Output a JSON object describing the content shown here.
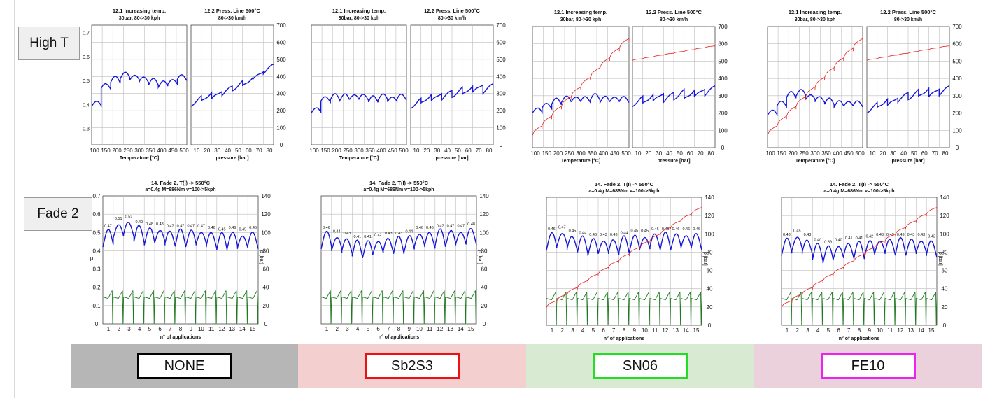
{
  "row_labels": {
    "high_t": "High T",
    "fade2": "Fade 2"
  },
  "materials": [
    {
      "name": "NONE",
      "box_color": "#000000",
      "bg_color": "#b6b6b6"
    },
    {
      "name": "Sb2S3",
      "box_color": "#ee1111",
      "bg_color": "#f3cfcf"
    },
    {
      "name": "SN06",
      "box_color": "#22dd22",
      "bg_color": "#d9ead3"
    },
    {
      "name": "FE10",
      "box_color": "#ee22ee",
      "bg_color": "#ead1dc"
    }
  ],
  "colors": {
    "mu": "#1515d8",
    "temperature": "#e82020",
    "pressure": "#1f7a1f"
  },
  "chart_data": [
    {
      "type": "line",
      "title": "12.1 Increasing temp.",
      "subtitle": "30bar, 80->30 kph",
      "xlabel": "Temperature [°C]",
      "x_ticks": [
        "100",
        "150",
        "200",
        "250",
        "300",
        "350",
        "400",
        "450",
        "500"
      ],
      "y_ticks_left": [
        "0.3",
        "0.4",
        "0.5",
        "0.6",
        "0.7"
      ],
      "applies_to": [
        "NONE",
        "Sb2S3",
        "SN06",
        "FE10"
      ],
      "series": [
        {
          "name": "μ",
          "material": "NONE",
          "values": [
            0.39,
            0.47,
            0.5,
            0.52,
            0.51,
            0.5,
            0.49,
            0.48,
            0.49,
            0.51
          ]
        },
        {
          "name": "μ",
          "material": "Sb2S3",
          "values": [
            0.36,
            0.41,
            0.42,
            0.42,
            0.42,
            0.42,
            0.41,
            0.42,
            0.41,
            0.42
          ]
        },
        {
          "name": "μ",
          "material": "SN06",
          "values": [
            0.37,
            0.39,
            0.41,
            0.42,
            0.42,
            0.42,
            0.43,
            0.42,
            0.42,
            0.42
          ]
        },
        {
          "name": "μ",
          "material": "FE10",
          "values": [
            0.36,
            0.4,
            0.44,
            0.45,
            0.43,
            0.42,
            0.41,
            0.4,
            0.4,
            0.4
          ]
        }
      ]
    },
    {
      "type": "line",
      "title": "12.2 Press. Line 500°C",
      "subtitle": "80->30 km/h",
      "xlabel": "pressure [bar]",
      "x_ticks": [
        "10",
        "20",
        "30",
        "40",
        "50",
        "60",
        "70",
        "80"
      ],
      "y_ticks_right": [
        "0",
        "100",
        "200",
        "300",
        "400",
        "500",
        "600",
        "700"
      ],
      "applies_to": [
        "NONE",
        "Sb2S3",
        "SN06",
        "FE10"
      ],
      "series": [
        {
          "name": "μ",
          "material": "NONE",
          "values": [
            0.4,
            0.42,
            0.43,
            0.45,
            0.47,
            0.49,
            0.52,
            0.55
          ]
        },
        {
          "name": "μ",
          "material": "Sb2S3",
          "values": [
            0.39,
            0.41,
            0.42,
            0.43,
            0.44,
            0.45,
            0.46,
            0.46
          ]
        },
        {
          "name": "μ",
          "material": "SN06",
          "values": [
            0.41,
            0.42,
            0.43,
            0.43,
            0.44,
            0.44,
            0.45,
            0.46
          ]
        },
        {
          "name": "μ",
          "material": "FE10",
          "values": [
            0.38,
            0.4,
            0.41,
            0.43,
            0.44,
            0.45,
            0.45,
            0.46
          ]
        }
      ]
    },
    {
      "type": "line",
      "title": "14. Fade 2, T(I) -> 550°C",
      "subtitle": "a=0.4g M=686Nm v=100->5kph",
      "xlabel": "n° of applications",
      "ylabel_left": "μ",
      "ylabel_right": "p [bar]",
      "x_ticks": [
        "1",
        "2",
        "3",
        "4",
        "5",
        "6",
        "7",
        "8",
        "9",
        "10",
        "11",
        "12",
        "13",
        "14",
        "15"
      ],
      "y_ticks_left": [
        "0",
        "0.1",
        "0.2",
        "0.3",
        "0.4",
        "0.5",
        "0.6",
        "0.7"
      ],
      "y_ticks_right": [
        "0",
        "20",
        "40",
        "60",
        "80",
        "100",
        "120",
        "140"
      ],
      "applies_to": [
        "NONE",
        "Sb2S3",
        "SN06",
        "FE10"
      ],
      "series": [
        {
          "name": "μ",
          "material": "NONE",
          "values": [
            0.47,
            0.51,
            0.52,
            0.49,
            0.48,
            0.48,
            0.47,
            0.47,
            0.47,
            0.47,
            0.46,
            0.45,
            0.46,
            0.45,
            0.46
          ]
        },
        {
          "name": "μ",
          "material": "Sb2S3",
          "values": [
            0.46,
            0.44,
            0.43,
            0.41,
            0.41,
            0.42,
            0.43,
            0.43,
            0.44,
            0.46,
            0.46,
            0.47,
            0.47,
            0.47,
            0.48
          ]
        },
        {
          "name": "μ",
          "material": "SN06",
          "values": [
            0.46,
            0.47,
            0.45,
            0.44,
            0.43,
            0.43,
            0.43,
            0.44,
            0.45,
            0.45,
            0.46,
            0.46,
            0.46,
            0.46,
            0.46
          ]
        },
        {
          "name": "μ",
          "material": "FE10",
          "values": [
            0.43,
            0.45,
            0.43,
            0.4,
            0.39,
            0.4,
            0.41,
            0.41,
            0.42,
            0.43,
            0.43,
            0.43,
            0.43,
            0.43,
            0.42
          ]
        }
      ]
    }
  ]
}
